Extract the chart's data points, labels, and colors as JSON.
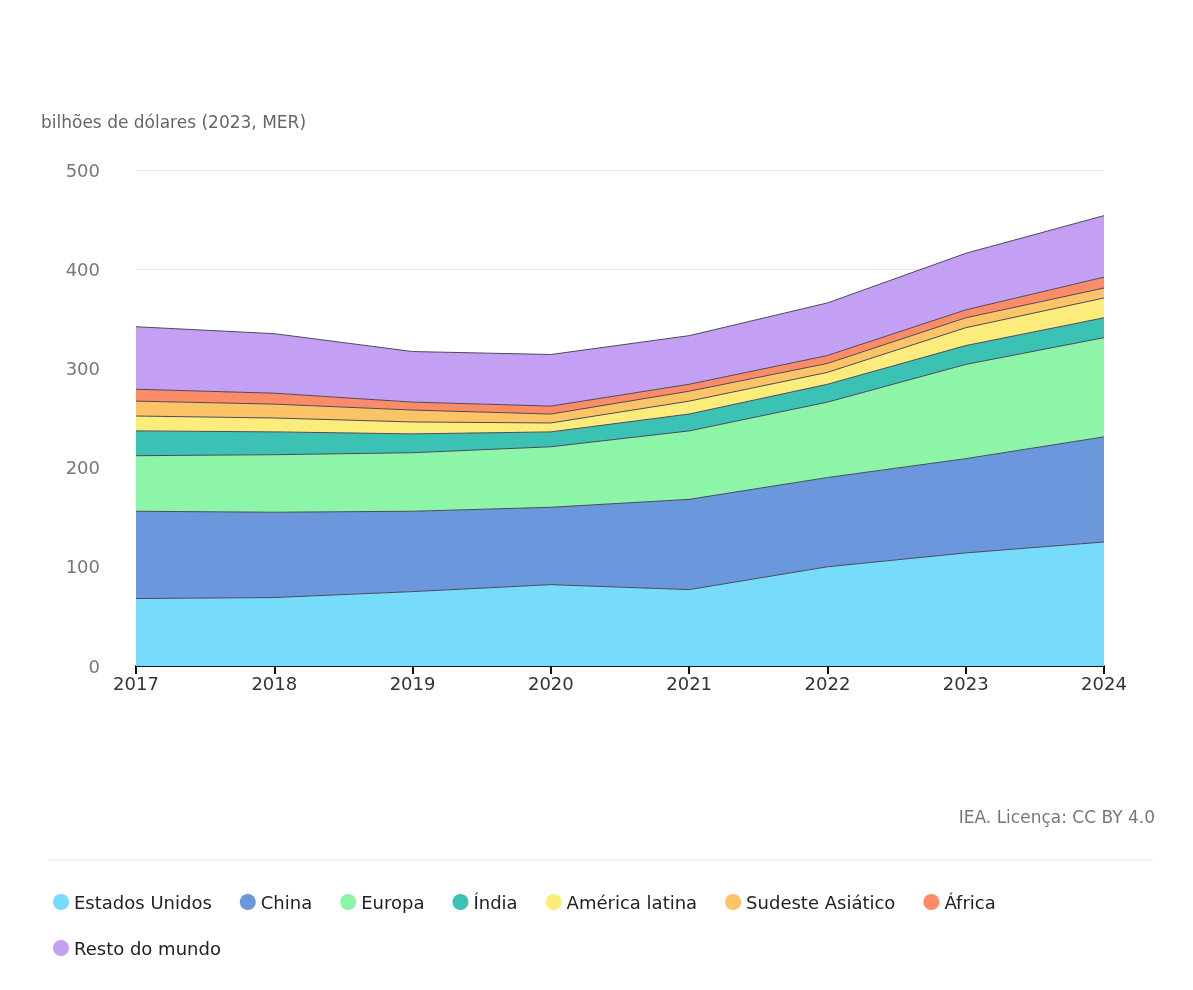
{
  "chart_data": {
    "type": "area",
    "stacked": true,
    "ylabel": "bilhões de dólares (2023, MER)",
    "categories": [
      "2017",
      "2018",
      "2019",
      "2020",
      "2021",
      "2022",
      "2023",
      "2024"
    ],
    "series": [
      {
        "name": "Estados Unidos",
        "color": "#77dcfc",
        "values": [
          68,
          69,
          75,
          82,
          77,
          100,
          114,
          125
        ]
      },
      {
        "name": "China",
        "color": "#6b98dc",
        "values": [
          88,
          86,
          81,
          78,
          91,
          90,
          95,
          106
        ]
      },
      {
        "name": "Europa",
        "color": "#8cf5a8",
        "values": [
          56,
          58,
          59,
          61,
          69,
          76,
          95,
          100
        ]
      },
      {
        "name": "Índia",
        "color": "#3cc2b4",
        "values": [
          25,
          23,
          19,
          15,
          17,
          18,
          19,
          20
        ]
      },
      {
        "name": "América latina",
        "color": "#fcec7c",
        "values": [
          15,
          14,
          12,
          9,
          13,
          12,
          18,
          20
        ]
      },
      {
        "name": "Sudeste Asiático",
        "color": "#fcc466",
        "values": [
          15,
          14,
          12,
          9,
          10,
          9,
          10,
          10
        ]
      },
      {
        "name": "África",
        "color": "#fc8c68",
        "values": [
          12,
          11,
          8,
          8,
          7,
          8,
          8,
          11
        ]
      },
      {
        "name": "Resto do mundo",
        "color": "#c4a0f4",
        "values": [
          63,
          60,
          51,
          52,
          49,
          53,
          57,
          62
        ]
      }
    ],
    "ylim": [
      0,
      500
    ],
    "yticks": [
      0,
      100,
      200,
      300,
      400,
      500
    ],
    "grid": "y",
    "legend": "bottom left",
    "marker": "none",
    "annotations": [
      "IEA. Licença: CC BY 4.0"
    ]
  }
}
